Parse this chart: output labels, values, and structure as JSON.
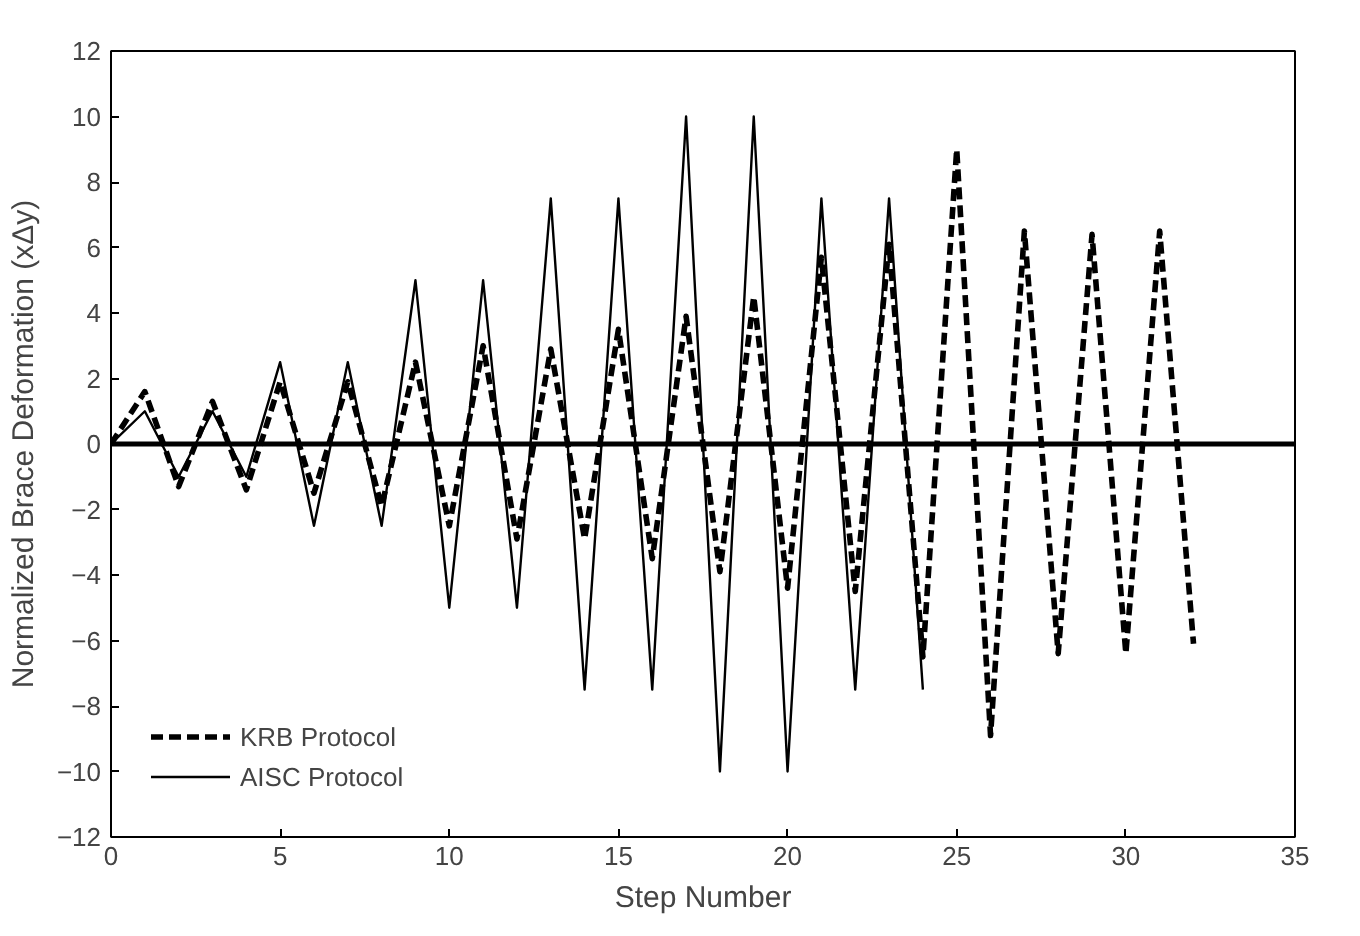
{
  "chart_data": {
    "type": "line",
    "xlabel": "Step Number",
    "ylabel": "Normalized Brace Deformation (xΔy)",
    "xlim": [
      0,
      35
    ],
    "xticks": [
      0,
      5,
      10,
      15,
      20,
      25,
      30,
      35
    ],
    "ylim": [
      -12,
      12
    ],
    "yticks": [
      -12,
      -10,
      -8,
      -6,
      -4,
      -2,
      0,
      2,
      4,
      6,
      8,
      10,
      12
    ],
    "grid": false,
    "legend": "bottom left",
    "marker": "none",
    "ref_lines": [
      {
        "axis": "y",
        "value": 0,
        "color": "#000000",
        "line_style": "solid"
      }
    ],
    "series": [
      {
        "name": "KRB Protocol",
        "color": "#000000",
        "line_style": "dashed",
        "x": [
          0,
          1,
          2,
          3,
          4,
          5,
          6,
          7,
          8,
          9,
          10,
          11,
          12,
          13,
          14,
          15,
          16,
          17,
          18,
          19,
          20,
          21,
          22,
          23,
          24,
          25,
          26,
          27,
          28,
          29,
          30,
          31,
          32
        ],
        "values": [
          0,
          1.6,
          -1.3,
          1.3,
          -1.4,
          1.9,
          -1.5,
          1.9,
          -1.9,
          2.5,
          -2.5,
          3,
          -2.9,
          2.9,
          -2.9,
          3.5,
          -3.5,
          3.9,
          -3.9,
          4.5,
          -4.4,
          5.7,
          -4.5,
          6.1,
          -6.5,
          9,
          -8.9,
          6.5,
          -6.4,
          6.4,
          -6.4,
          6.5,
          -6.1
        ]
      },
      {
        "name": "AISC Protocol",
        "color": "#000000",
        "line_style": "solid",
        "x": [
          0,
          1,
          2,
          3,
          4,
          5,
          6,
          7,
          8,
          9,
          10,
          11,
          12,
          13,
          14,
          15,
          16,
          17,
          18,
          19,
          20,
          21,
          22,
          23,
          24
        ],
        "values": [
          0,
          1,
          -1,
          1,
          -1,
          2.5,
          -2.5,
          2.5,
          -2.5,
          5,
          -5,
          5,
          -5,
          7.5,
          -7.5,
          7.5,
          -7.5,
          10,
          -10,
          10,
          -10,
          7.5,
          -7.5,
          7.5,
          -7.5
        ]
      }
    ]
  }
}
